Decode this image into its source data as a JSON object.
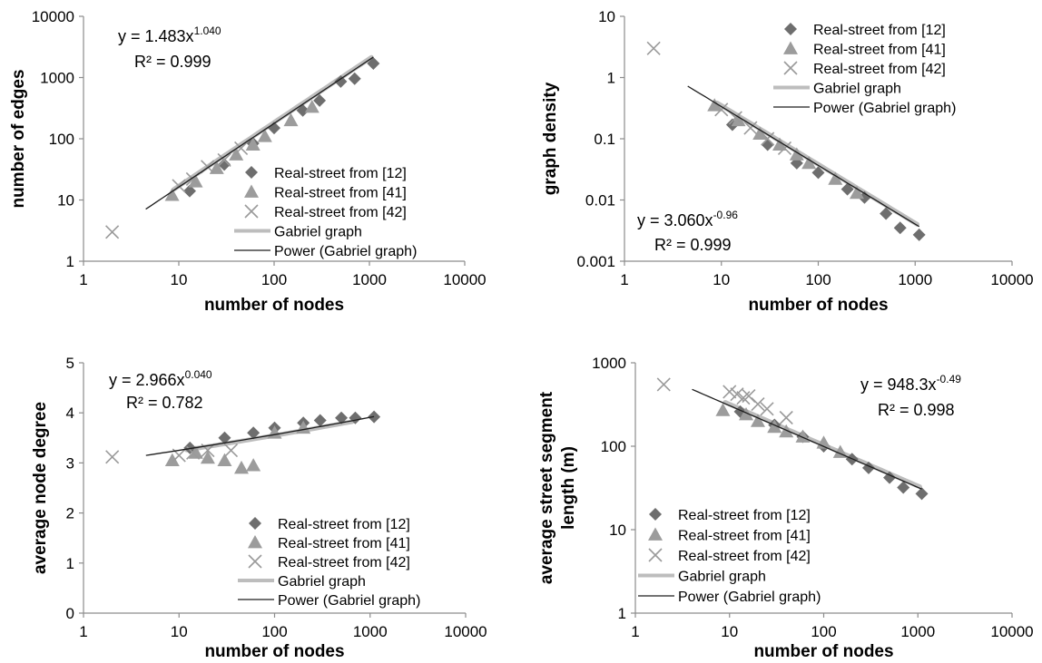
{
  "colors": {
    "series_12": "#6e6e6e",
    "series_41": "#9c9c9c",
    "series_42": "#9a9a9a",
    "gabriel": "#bdbdbd",
    "power": "#1e1e1e",
    "axis": "#8c8c8c"
  },
  "legend_labels": {
    "s12": "Real-street from [12]",
    "s41": "Real-street from [41]",
    "s42": "Real-street from [42]",
    "gabriel": "Gabriel graph",
    "power": "Power (Gabriel graph)"
  },
  "chart_data": [
    {
      "type": "scatter",
      "xscale": "log",
      "yscale": "log",
      "xlim": [
        1,
        10000
      ],
      "ylim": [
        1,
        10000
      ],
      "x_ticks": [
        "1",
        "10",
        "100",
        "1000",
        "10000"
      ],
      "y_ticks": [
        "1",
        "10",
        "100",
        "1000",
        "10000"
      ],
      "xlabel": "number of nodes",
      "ylabel": "number of edges",
      "grid": false,
      "legend_position": "bottom-right",
      "equation": {
        "base": "y = 1.483x",
        "exp": "1.040",
        "r2": "R² = 0.999"
      },
      "fit": {
        "a": 1.483,
        "b": 1.04,
        "x_range": [
          4.5,
          1100
        ]
      },
      "gabriel_range": [
        9,
        1050
      ],
      "series": [
        {
          "name": "Real-street from [12]",
          "marker": "diamond",
          "points": [
            [
              13,
              14
            ],
            [
              30,
              38
            ],
            [
              60,
              84
            ],
            [
              100,
              150
            ],
            [
              200,
              290
            ],
            [
              300,
              420
            ],
            [
              500,
              860
            ],
            [
              700,
              960
            ],
            [
              1100,
              1700
            ]
          ]
        },
        {
          "name": "Real-street from [41]",
          "marker": "triangle",
          "points": [
            [
              8.5,
              12
            ],
            [
              15,
              20
            ],
            [
              25,
              33
            ],
            [
              40,
              55
            ],
            [
              60,
              80
            ],
            [
              80,
              110
            ],
            [
              150,
              200
            ],
            [
              250,
              330
            ]
          ]
        },
        {
          "name": "Real-street from [42]",
          "marker": "x",
          "points": [
            [
              2,
              3
            ],
            [
              10,
              17
            ],
            [
              14,
              22
            ],
            [
              20,
              35
            ],
            [
              30,
              45
            ],
            [
              45,
              70
            ]
          ]
        }
      ]
    },
    {
      "type": "scatter",
      "xscale": "log",
      "yscale": "log",
      "xlim": [
        1,
        10000
      ],
      "ylim": [
        0.001,
        10
      ],
      "x_ticks": [
        "1",
        "10",
        "100",
        "1000",
        "10000"
      ],
      "y_ticks": [
        "0.001",
        "0.01",
        "0.1",
        "1",
        "10"
      ],
      "xlabel": "number of nodes",
      "ylabel": "graph density",
      "grid": false,
      "legend_position": "top-right",
      "equation": {
        "base": "y = 3.060x",
        "exp": "-0.96",
        "r2": "R² = 0.999"
      },
      "fit": {
        "a": 3.06,
        "b": -0.96,
        "x_range": [
          4.5,
          1100
        ]
      },
      "gabriel_range": [
        9,
        1050
      ],
      "series": [
        {
          "name": "Real-street from [12]",
          "marker": "diamond",
          "points": [
            [
              13,
              0.17
            ],
            [
              30,
              0.08
            ],
            [
              60,
              0.04
            ],
            [
              100,
              0.028
            ],
            [
              200,
              0.015
            ],
            [
              300,
              0.011
            ],
            [
              500,
              0.006
            ],
            [
              700,
              0.0035
            ],
            [
              1100,
              0.0027
            ]
          ]
        },
        {
          "name": "Real-street from [41]",
          "marker": "triangle",
          "points": [
            [
              8.5,
              0.35
            ],
            [
              15,
              0.2
            ],
            [
              25,
              0.12
            ],
            [
              40,
              0.08
            ],
            [
              60,
              0.055
            ],
            [
              80,
              0.04
            ],
            [
              150,
              0.022
            ],
            [
              250,
              0.013
            ]
          ]
        },
        {
          "name": "Real-street from [42]",
          "marker": "x",
          "points": [
            [
              2,
              3
            ],
            [
              10,
              0.3
            ],
            [
              14,
              0.22
            ],
            [
              20,
              0.15
            ],
            [
              30,
              0.1
            ],
            [
              45,
              0.07
            ]
          ]
        }
      ]
    },
    {
      "type": "scatter",
      "xscale": "log",
      "yscale": "linear",
      "xlim": [
        1,
        10000
      ],
      "ylim": [
        0,
        5
      ],
      "x_ticks": [
        "1",
        "10",
        "100",
        "1000",
        "10000"
      ],
      "y_ticks": [
        "0",
        "1",
        "2",
        "3",
        "4",
        "5"
      ],
      "xlabel": "number of nodes",
      "ylabel": "average node degree",
      "grid": false,
      "legend_position": "bottom-right",
      "equation": {
        "base": "y = 2.966x",
        "exp": "0.040",
        "r2": "R² = 0.782"
      },
      "fit": {
        "a": 2.966,
        "b": 0.04,
        "x_range": [
          4.5,
          1100
        ]
      },
      "gabriel_range": [
        12,
        650
      ],
      "series": [
        {
          "name": "Real-street from [12]",
          "marker": "diamond",
          "points": [
            [
              13,
              3.3
            ],
            [
              30,
              3.5
            ],
            [
              60,
              3.6
            ],
            [
              100,
              3.7
            ],
            [
              200,
              3.8
            ],
            [
              300,
              3.85
            ],
            [
              500,
              3.9
            ],
            [
              700,
              3.9
            ],
            [
              1100,
              3.92
            ]
          ]
        },
        {
          "name": "Real-street from [41]",
          "marker": "triangle",
          "points": [
            [
              8.5,
              3.05
            ],
            [
              15,
              3.2
            ],
            [
              20,
              3.1
            ],
            [
              30,
              3.05
            ],
            [
              45,
              2.9
            ],
            [
              60,
              2.95
            ],
            [
              100,
              3.6
            ],
            [
              200,
              3.7
            ]
          ]
        },
        {
          "name": "Real-street from [42]",
          "marker": "x",
          "points": [
            [
              2,
              3.12
            ],
            [
              10,
              3.15
            ],
            [
              14,
              3.2
            ],
            [
              20,
              3.25
            ],
            [
              35,
              3.25
            ]
          ]
        }
      ]
    },
    {
      "type": "scatter",
      "xscale": "log",
      "yscale": "log",
      "xlim": [
        1,
        10000
      ],
      "ylim": [
        1,
        1000
      ],
      "x_ticks": [
        "1",
        "10",
        "100",
        "1000",
        "10000"
      ],
      "y_ticks": [
        "1",
        "10",
        "100",
        "1000"
      ],
      "xlabel": "number of nodes",
      "ylabel": "average street segment length (m)",
      "ylabel_lines": [
        "average street segment",
        "length (m)"
      ],
      "grid": false,
      "legend_position": "bottom-left",
      "equation": {
        "base": "y = 948.3x",
        "exp": "-0.49",
        "r2": "R² = 0.998"
      },
      "fit": {
        "a": 948.3,
        "b": -0.49,
        "x_range": [
          4,
          1100
        ]
      },
      "gabriel_range": [
        9,
        1050
      ],
      "series": [
        {
          "name": "Real-street from [12]",
          "marker": "diamond",
          "points": [
            [
              13,
              260
            ],
            [
              30,
              180
            ],
            [
              60,
              130
            ],
            [
              100,
              100
            ],
            [
              200,
              70
            ],
            [
              300,
              55
            ],
            [
              500,
              42
            ],
            [
              700,
              32
            ],
            [
              1100,
              27
            ]
          ]
        },
        {
          "name": "Real-street from [41]",
          "marker": "triangle",
          "points": [
            [
              8.5,
              270
            ],
            [
              15,
              240
            ],
            [
              20,
              200
            ],
            [
              30,
              170
            ],
            [
              40,
              150
            ],
            [
              60,
              130
            ],
            [
              100,
              110
            ],
            [
              150,
              85
            ]
          ]
        },
        {
          "name": "Real-street from [42]",
          "marker": "x",
          "points": [
            [
              2,
              550
            ],
            [
              10,
              450
            ],
            [
              12,
              420
            ],
            [
              14,
              380
            ],
            [
              16,
              400
            ],
            [
              20,
              320
            ],
            [
              25,
              280
            ],
            [
              40,
              220
            ]
          ]
        }
      ]
    }
  ]
}
